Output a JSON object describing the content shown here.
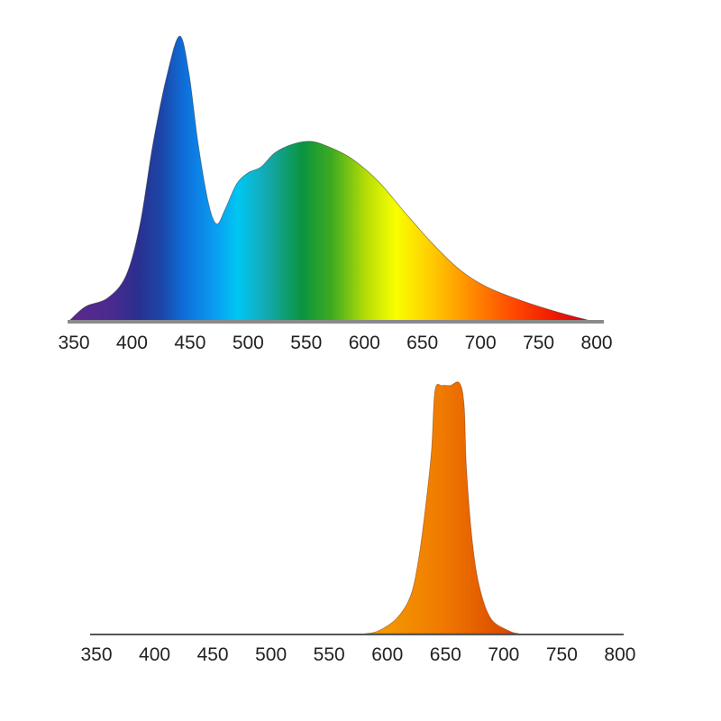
{
  "chart_data": [
    {
      "type": "area",
      "xlim": [
        350,
        800
      ],
      "ylim": [
        0,
        1
      ],
      "grid": false,
      "x_ticks": [
        "350",
        "400",
        "450",
        "500",
        "550",
        "600",
        "650",
        "700",
        "750",
        "800"
      ],
      "fill": "visible-spectrum-gradient",
      "x": [
        346,
        360,
        379,
        395,
        407,
        418,
        430,
        441,
        449,
        457,
        466,
        473,
        480,
        490,
        500,
        511,
        523,
        538,
        554,
        570,
        589,
        612,
        635,
        659,
        682,
        705,
        736,
        767,
        795
      ],
      "y": [
        0,
        0.05,
        0.08,
        0.16,
        0.34,
        0.62,
        0.86,
        1.0,
        0.87,
        0.62,
        0.41,
        0.34,
        0.39,
        0.48,
        0.52,
        0.54,
        0.59,
        0.62,
        0.63,
        0.61,
        0.57,
        0.49,
        0.38,
        0.27,
        0.18,
        0.12,
        0.07,
        0.03,
        0
      ]
    },
    {
      "type": "area",
      "xlim": [
        350,
        800
      ],
      "ylim": [
        0,
        1
      ],
      "grid": false,
      "x_ticks": [
        "350",
        "400",
        "450",
        "500",
        "550",
        "600",
        "650",
        "700",
        "750",
        "800"
      ],
      "fill_colors": [
        "#f5a300",
        "#f07a00",
        "#d84300"
      ],
      "x": [
        581,
        592,
        608,
        620,
        627,
        633,
        638,
        641,
        647,
        654,
        662,
        666,
        668,
        673,
        679,
        689,
        705,
        713
      ],
      "y": [
        0,
        0.01,
        0.06,
        0.15,
        0.3,
        0.51,
        0.73,
        0.97,
        0.99,
        0.99,
        1.0,
        0.91,
        0.66,
        0.37,
        0.19,
        0.06,
        0.01,
        0
      ]
    }
  ]
}
